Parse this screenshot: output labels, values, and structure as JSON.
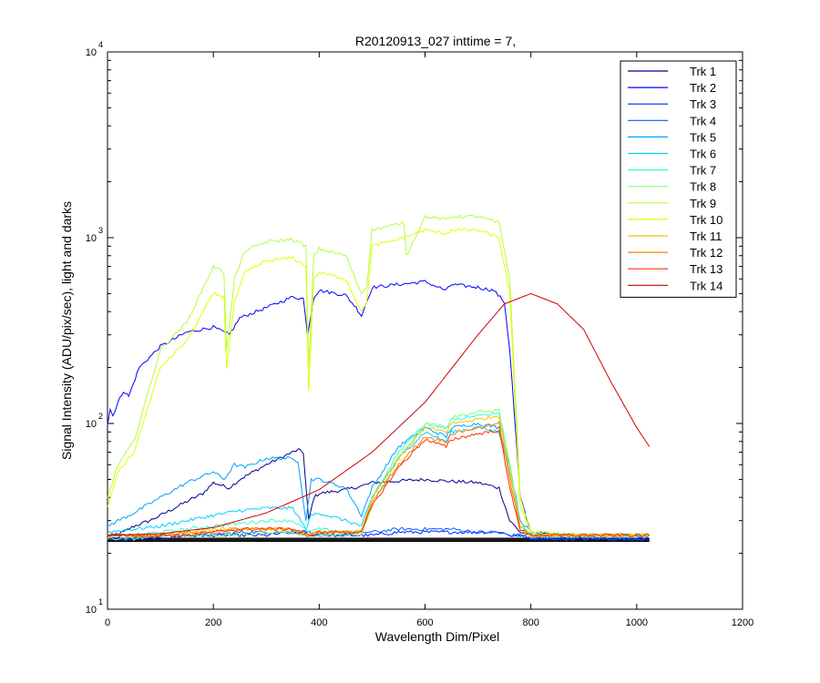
{
  "chart_data": {
    "type": "line",
    "title": "R20120913_027 inttime = 7,",
    "xlabel": "Wavelength Dim/Pixel",
    "ylabel": "Signal Intensity (ADU/pix/sec), light and darks",
    "xlim": [
      0,
      1200
    ],
    "ylim": [
      10,
      10000
    ],
    "yscale": "log",
    "grid": false,
    "legend_position": "top-right",
    "x_ticks": [
      {
        "value": 0,
        "label": "0"
      },
      {
        "value": 200,
        "label": "200"
      },
      {
        "value": 400,
        "label": "400"
      },
      {
        "value": 600,
        "label": "600"
      },
      {
        "value": 800,
        "label": "800"
      },
      {
        "value": 1000,
        "label": "1000"
      },
      {
        "value": 1200,
        "label": "1200"
      }
    ],
    "y_ticks": [
      {
        "value": 10,
        "base": "10",
        "exp": "1"
      },
      {
        "value": 100,
        "base": "10",
        "exp": "2"
      },
      {
        "value": 1000,
        "base": "10",
        "exp": "3"
      },
      {
        "value": 10000,
        "base": "10",
        "exp": "4"
      }
    ],
    "series": [
      {
        "name": "Trk 1",
        "color": "#00008f",
        "x": [
          0,
          10,
          30,
          50,
          80,
          100,
          150,
          180,
          200,
          230,
          250,
          300,
          340,
          360,
          370,
          380,
          390,
          400,
          450,
          480,
          500,
          550,
          600,
          640,
          700,
          740,
          760,
          780,
          800,
          880,
          900,
          1024
        ],
        "y": [
          25,
          25,
          26,
          28,
          30,
          32,
          38,
          42,
          48,
          45,
          50,
          60,
          68,
          72,
          70,
          30,
          40,
          42,
          44,
          46,
          48,
          49,
          50,
          49,
          48,
          45,
          30,
          26,
          25,
          25,
          25,
          25
        ]
      },
      {
        "name": "Trk 2",
        "color": "#0000ff",
        "x": [
          0,
          5,
          10,
          20,
          30,
          40,
          60,
          100,
          150,
          200,
          230,
          250,
          300,
          350,
          370,
          378,
          390,
          400,
          450,
          470,
          480,
          500,
          550,
          600,
          640,
          650,
          700,
          730,
          750,
          760,
          780,
          800,
          850,
          900,
          1024
        ],
        "y": [
          100,
          120,
          110,
          130,
          150,
          140,
          200,
          260,
          310,
          330,
          300,
          370,
          420,
          480,
          470,
          300,
          480,
          520,
          490,
          420,
          380,
          540,
          560,
          580,
          520,
          560,
          540,
          520,
          450,
          250,
          40,
          26,
          25,
          25,
          25
        ]
      },
      {
        "name": "Trk 3",
        "color": "#0020ff",
        "x": [
          0,
          50,
          100,
          150,
          200,
          250,
          300,
          350,
          380,
          390,
          400,
          450,
          480,
          500,
          550,
          600,
          650,
          700,
          740,
          760,
          780,
          800,
          900,
          1024
        ],
        "y": [
          24,
          24,
          24,
          25,
          25,
          25,
          25,
          26,
          26,
          25,
          25,
          25,
          25,
          25,
          26,
          26,
          26,
          26,
          26,
          25,
          25,
          24,
          24,
          24
        ]
      },
      {
        "name": "Trk 4",
        "color": "#0060ff",
        "x": [
          0,
          50,
          100,
          150,
          200,
          250,
          300,
          350,
          380,
          390,
          400,
          450,
          480,
          500,
          550,
          600,
          650,
          700,
          740,
          760,
          780,
          800,
          900,
          1024
        ],
        "y": [
          24,
          24,
          25,
          25,
          25,
          26,
          26,
          26,
          25,
          25,
          25,
          25,
          26,
          26,
          27,
          27,
          27,
          26,
          26,
          25,
          25,
          24,
          24,
          24
        ]
      },
      {
        "name": "Trk 5",
        "color": "#00a0ff",
        "x": [
          0,
          20,
          50,
          100,
          150,
          200,
          220,
          240,
          260,
          300,
          340,
          360,
          375,
          385,
          400,
          450,
          480,
          500,
          550,
          600,
          640,
          650,
          700,
          740,
          760,
          780,
          800,
          850,
          900,
          1024
        ],
        "y": [
          28,
          30,
          33,
          40,
          48,
          55,
          50,
          60,
          58,
          65,
          65,
          63,
          30,
          50,
          50,
          45,
          32,
          45,
          75,
          95,
          85,
          95,
          100,
          95,
          60,
          30,
          26,
          25,
          25,
          25
        ]
      },
      {
        "name": "Trk 6",
        "color": "#00d0ff",
        "x": [
          0,
          50,
          100,
          150,
          200,
          250,
          300,
          350,
          375,
          385,
          400,
          450,
          480,
          500,
          550,
          600,
          640,
          650,
          700,
          740,
          760,
          780,
          800,
          900,
          1024
        ],
        "y": [
          26,
          27,
          28,
          30,
          32,
          34,
          35,
          35,
          27,
          32,
          33,
          30,
          28,
          40,
          65,
          90,
          80,
          90,
          95,
          90,
          55,
          28,
          25,
          25,
          25
        ]
      },
      {
        "name": "Trk 7",
        "color": "#30ffd0",
        "x": [
          0,
          50,
          100,
          150,
          200,
          250,
          300,
          350,
          380,
          400,
          450,
          480,
          500,
          550,
          600,
          640,
          650,
          700,
          740,
          760,
          780,
          800,
          900,
          1024
        ],
        "y": [
          25,
          25,
          26,
          27,
          28,
          29,
          30,
          30,
          26,
          27,
          26,
          26,
          40,
          70,
          100,
          95,
          105,
          110,
          115,
          60,
          28,
          25,
          25,
          25
        ]
      },
      {
        "name": "Trk 8",
        "color": "#80ff80",
        "x": [
          0,
          50,
          100,
          150,
          200,
          250,
          300,
          350,
          380,
          400,
          450,
          480,
          500,
          550,
          600,
          640,
          650,
          700,
          740,
          760,
          780,
          800,
          900,
          1024
        ],
        "y": [
          24,
          24,
          25,
          25,
          25,
          25,
          26,
          26,
          25,
          25,
          25,
          25,
          36,
          65,
          100,
          95,
          108,
          115,
          118,
          60,
          28,
          25,
          25,
          25
        ]
      },
      {
        "name": "Trk 9",
        "color": "#b0ff40",
        "x": [
          0,
          20,
          50,
          100,
          150,
          200,
          220,
          225,
          240,
          260,
          300,
          350,
          375,
          380,
          390,
          400,
          450,
          480,
          490,
          500,
          560,
          565,
          600,
          640,
          650,
          700,
          740,
          760,
          780,
          800,
          900,
          1024
        ],
        "y": [
          40,
          60,
          80,
          250,
          350,
          700,
          650,
          250,
          600,
          850,
          950,
          980,
          900,
          200,
          800,
          870,
          800,
          500,
          550,
          1100,
          1200,
          800,
          1300,
          1250,
          1300,
          1300,
          1200,
          600,
          40,
          26,
          25,
          25
        ]
      },
      {
        "name": "Trk 10",
        "color": "#e0ff00",
        "x": [
          0,
          20,
          50,
          100,
          150,
          200,
          220,
          225,
          240,
          260,
          300,
          350,
          375,
          380,
          390,
          400,
          450,
          480,
          490,
          500,
          560,
          600,
          640,
          650,
          700,
          740,
          760,
          780,
          800,
          900,
          1024
        ],
        "y": [
          35,
          55,
          70,
          200,
          280,
          500,
          480,
          200,
          450,
          650,
          750,
          780,
          700,
          150,
          600,
          650,
          600,
          400,
          450,
          900,
          1000,
          1100,
          1050,
          1100,
          1100,
          1000,
          500,
          35,
          26,
          25,
          25
        ]
      },
      {
        "name": "Trk 11",
        "color": "#ffc000",
        "x": [
          0,
          50,
          100,
          150,
          200,
          250,
          300,
          350,
          380,
          400,
          450,
          480,
          500,
          550,
          600,
          640,
          650,
          700,
          740,
          760,
          780,
          800,
          900,
          1024
        ],
        "y": [
          25,
          25,
          25,
          26,
          27,
          27,
          27,
          27,
          25,
          26,
          26,
          26,
          40,
          65,
          95,
          90,
          100,
          105,
          110,
          55,
          28,
          25,
          25,
          25
        ]
      },
      {
        "name": "Trk 12",
        "color": "#ff8000",
        "x": [
          0,
          50,
          100,
          150,
          200,
          250,
          300,
          350,
          380,
          400,
          450,
          480,
          500,
          550,
          600,
          640,
          650,
          700,
          740,
          760,
          780,
          800,
          900,
          1024
        ],
        "y": [
          25,
          25,
          25,
          26,
          26,
          27,
          27,
          27,
          25,
          26,
          26,
          26,
          38,
          60,
          85,
          80,
          88,
          95,
          100,
          50,
          27,
          25,
          25,
          25
        ]
      },
      {
        "name": "Trk 13",
        "color": "#ff3000",
        "x": [
          0,
          50,
          100,
          150,
          200,
          250,
          300,
          350,
          380,
          400,
          450,
          480,
          500,
          550,
          600,
          640,
          650,
          700,
          740,
          760,
          780,
          800,
          900,
          1024
        ],
        "y": [
          25,
          25,
          25,
          25,
          26,
          27,
          27,
          27,
          25,
          26,
          26,
          26,
          36,
          58,
          82,
          75,
          82,
          88,
          92,
          45,
          27,
          25,
          25,
          25
        ]
      },
      {
        "name": "Trk 14",
        "color": "#d00000",
        "x": [
          0,
          100,
          200,
          300,
          400,
          500,
          600,
          700,
          750,
          800,
          850,
          900,
          950,
          1000,
          1024
        ],
        "y": [
          25,
          25.5,
          27.5,
          33,
          44,
          70,
          130,
          300,
          440,
          500,
          440,
          320,
          170,
          95,
          75
        ]
      }
    ]
  }
}
